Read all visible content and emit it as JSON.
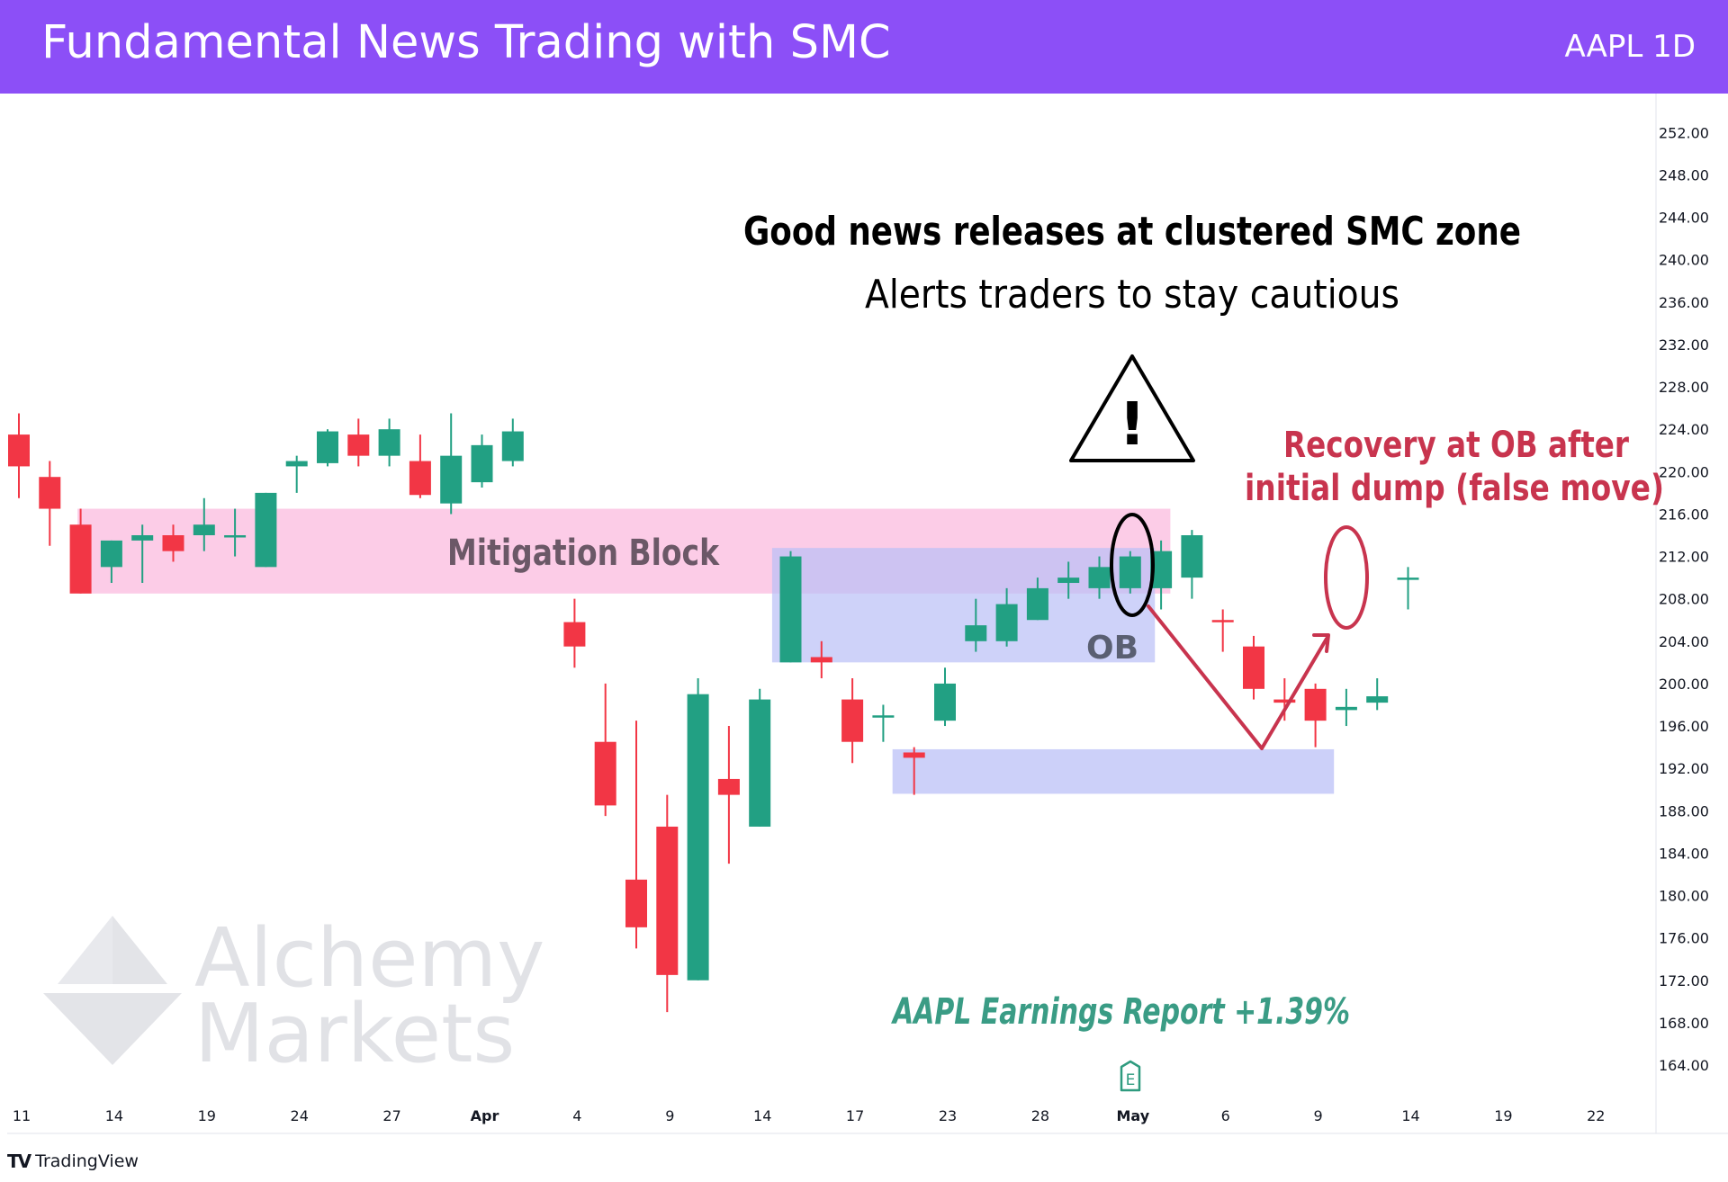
{
  "header": {
    "title": "Fundamental News Trading with SMC",
    "symbol": "AAPL 1D"
  },
  "footer": {
    "brand": "TradingView"
  },
  "watermark": {
    "line1": "Alchemy",
    "line2": "Markets"
  },
  "colors": {
    "header": "#8c4ff7",
    "up": "#22a083",
    "down": "#f23645",
    "mitigation": "#fbc6e4",
    "ob": "#c6caf8",
    "annotation": "#c8344e",
    "earnings": "#3a9c85"
  },
  "annotations": {
    "headline": "Good news releases at clustered SMC zone",
    "subline": "Alerts traders to stay cautious",
    "mitigation": "Mitigation Block",
    "ob": "OB",
    "recovery_line1": "Recovery at OB after",
    "recovery_line2": "initial dump (false move)",
    "earnings": "AAPL Earnings Report +1.39%",
    "earnings_marker": "E",
    "warning": "!"
  },
  "chart_data": {
    "type": "candlestick",
    "ylim": [
      162,
      256
    ],
    "y_ticks": [
      164,
      168,
      172,
      176,
      180,
      184,
      188,
      192,
      196,
      200,
      204,
      208,
      212,
      216,
      220,
      224,
      228,
      232,
      236,
      240,
      244,
      248,
      252
    ],
    "y_tick_labels": [
      "164.00",
      "168.00",
      "172.00",
      "176.00",
      "180.00",
      "184.00",
      "188.00",
      "192.00",
      "196.00",
      "200.00",
      "204.00",
      "208.00",
      "212.00",
      "216.00",
      "220.00",
      "224.00",
      "228.00",
      "232.00",
      "236.00",
      "240.00",
      "244.00",
      "248.00",
      "252.00"
    ],
    "x_labels": [
      {
        "label": "11",
        "day": 0
      },
      {
        "label": "14",
        "day": 3
      },
      {
        "label": "19",
        "day": 6
      },
      {
        "label": "24",
        "day": 9
      },
      {
        "label": "27",
        "day": 12
      },
      {
        "label": "Apr",
        "day": 15
      },
      {
        "label": "4",
        "day": 18
      },
      {
        "label": "9",
        "day": 21
      },
      {
        "label": "14",
        "day": 24
      },
      {
        "label": "17",
        "day": 27
      },
      {
        "label": "23",
        "day": 30
      },
      {
        "label": "28",
        "day": 33
      },
      {
        "label": "May",
        "day": 36
      },
      {
        "label": "6",
        "day": 39
      },
      {
        "label": "9",
        "day": 42
      },
      {
        "label": "14",
        "day": 45
      },
      {
        "label": "19",
        "day": 48
      },
      {
        "label": "22",
        "day": 51
      }
    ],
    "candles": [
      {
        "day": 0,
        "o": 223.5,
        "h": 225.5,
        "l": 217.5,
        "c": 220.5
      },
      {
        "day": 1,
        "o": 219.5,
        "h": 221.0,
        "l": 213.0,
        "c": 216.5
      },
      {
        "day": 2,
        "o": 215.0,
        "h": 216.5,
        "l": 208.5,
        "c": 208.5
      },
      {
        "day": 3,
        "o": 211.0,
        "h": 213.5,
        "l": 209.5,
        "c": 213.5
      },
      {
        "day": 4,
        "o": 213.5,
        "h": 215.0,
        "l": 209.5,
        "c": 214.0
      },
      {
        "day": 5,
        "o": 214.0,
        "h": 215.0,
        "l": 211.5,
        "c": 212.5
      },
      {
        "day": 6,
        "o": 214.0,
        "h": 217.5,
        "l": 212.5,
        "c": 215.0
      },
      {
        "day": 7,
        "o": 214.0,
        "h": 216.5,
        "l": 212.0,
        "c": 214.0
      },
      {
        "day": 8,
        "o": 211.0,
        "h": 218.0,
        "l": 211.0,
        "c": 218.0
      },
      {
        "day": 9,
        "o": 220.5,
        "h": 221.5,
        "l": 218.0,
        "c": 221.0
      },
      {
        "day": 10,
        "o": 220.8,
        "h": 224.0,
        "l": 220.5,
        "c": 223.8
      },
      {
        "day": 11,
        "o": 223.5,
        "h": 225.0,
        "l": 220.5,
        "c": 221.5
      },
      {
        "day": 12,
        "o": 221.5,
        "h": 225.0,
        "l": 220.5,
        "c": 224.0
      },
      {
        "day": 13,
        "o": 221.0,
        "h": 223.5,
        "l": 217.5,
        "c": 217.8
      },
      {
        "day": 14,
        "o": 217.0,
        "h": 225.5,
        "l": 216.0,
        "c": 221.5
      },
      {
        "day": 15,
        "o": 219.0,
        "h": 223.5,
        "l": 218.5,
        "c": 222.5
      },
      {
        "day": 16,
        "o": 221.0,
        "h": 225.0,
        "l": 220.5,
        "c": 223.8
      },
      {
        "day": 18,
        "o": 205.8,
        "h": 208.0,
        "l": 201.5,
        "c": 203.5
      },
      {
        "day": 19,
        "o": 194.5,
        "h": 200.0,
        "l": 187.5,
        "c": 188.5
      },
      {
        "day": 20,
        "o": 181.5,
        "h": 196.5,
        "l": 175.0,
        "c": 177.0
      },
      {
        "day": 21,
        "o": 186.5,
        "h": 189.5,
        "l": 169.0,
        "c": 172.5
      },
      {
        "day": 22,
        "o": 172.0,
        "h": 200.5,
        "l": 172.0,
        "c": 199.0
      },
      {
        "day": 23,
        "o": 191.0,
        "h": 196.0,
        "l": 183.0,
        "c": 189.5
      },
      {
        "day": 24,
        "o": 186.5,
        "h": 199.5,
        "l": 186.5,
        "c": 198.5
      },
      {
        "day": 25,
        "o": 202.0,
        "h": 212.5,
        "l": 202.0,
        "c": 212.0
      },
      {
        "day": 26,
        "o": 202.5,
        "h": 204.0,
        "l": 200.5,
        "c": 202.0
      },
      {
        "day": 27,
        "o": 198.5,
        "h": 200.5,
        "l": 192.5,
        "c": 194.5
      },
      {
        "day": 28,
        "o": 197.0,
        "h": 198.0,
        "l": 194.5,
        "c": 197.0
      },
      {
        "day": 29,
        "o": 193.5,
        "h": 194.0,
        "l": 189.5,
        "c": 193.0
      },
      {
        "day": 30,
        "o": 196.5,
        "h": 201.5,
        "l": 196.0,
        "c": 200.0
      },
      {
        "day": 31,
        "o": 204.0,
        "h": 208.0,
        "l": 203.0,
        "c": 205.5
      },
      {
        "day": 32,
        "o": 204.0,
        "h": 209.0,
        "l": 203.5,
        "c": 207.5
      },
      {
        "day": 33,
        "o": 206.0,
        "h": 210.0,
        "l": 206.0,
        "c": 209.0
      },
      {
        "day": 34,
        "o": 209.5,
        "h": 211.5,
        "l": 208.0,
        "c": 210.0
      },
      {
        "day": 35,
        "o": 209.0,
        "h": 212.0,
        "l": 208.0,
        "c": 211.0
      },
      {
        "day": 36,
        "o": 209.0,
        "h": 212.5,
        "l": 208.5,
        "c": 212.0
      },
      {
        "day": 37,
        "o": 209.0,
        "h": 213.5,
        "l": 207.0,
        "c": 212.5
      },
      {
        "day": 38,
        "o": 210.0,
        "h": 214.5,
        "l": 208.0,
        "c": 214.0
      },
      {
        "day": 39,
        "o": 206.0,
        "h": 207.0,
        "l": 203.0,
        "c": 205.8
      },
      {
        "day": 40,
        "o": 203.5,
        "h": 204.5,
        "l": 198.5,
        "c": 199.5
      },
      {
        "day": 41,
        "o": 198.5,
        "h": 200.5,
        "l": 196.5,
        "c": 198.2
      },
      {
        "day": 42,
        "o": 199.5,
        "h": 200.0,
        "l": 194.0,
        "c": 196.5
      },
      {
        "day": 43,
        "o": 197.5,
        "h": 199.5,
        "l": 196.0,
        "c": 197.8
      },
      {
        "day": 44,
        "o": 198.2,
        "h": 200.5,
        "l": 197.5,
        "c": 198.8
      },
      {
        "day": 45,
        "o": 210.0,
        "h": 211.0,
        "l": 207.0,
        "c": 210.0
      }
    ]
  }
}
